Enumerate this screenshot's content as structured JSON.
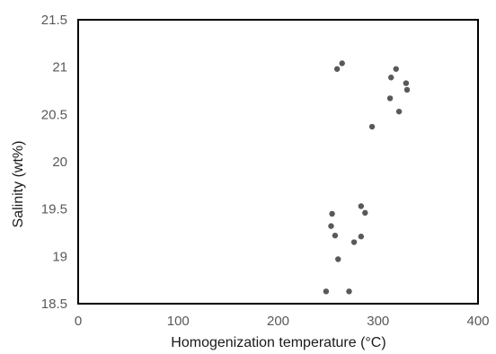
{
  "chart_data": {
    "type": "scatter",
    "xlabel": "Homogenization temperature (°C)",
    "ylabel": "Salinity (wt%)",
    "xlim": [
      0,
      400
    ],
    "ylim": [
      18.5,
      21.5
    ],
    "x_ticks": [
      0,
      100,
      200,
      300,
      400
    ],
    "y_ticks": [
      18.5,
      19,
      19.5,
      20,
      20.5,
      21,
      21.5
    ],
    "grid": false,
    "legend": "none",
    "marker_color": "#595959",
    "frame_color": "#000000",
    "series": [
      {
        "x": [
          259,
          264,
          313,
          318,
          328,
          329,
          312,
          321,
          294,
          254,
          253,
          257,
          260,
          248,
          283,
          287,
          283,
          276,
          271
        ],
        "y": [
          20.98,
          21.04,
          20.89,
          20.98,
          20.83,
          20.76,
          20.67,
          20.53,
          20.37,
          19.45,
          19.32,
          19.22,
          18.97,
          18.63,
          19.53,
          19.46,
          19.21,
          19.15,
          18.63
        ]
      }
    ]
  }
}
